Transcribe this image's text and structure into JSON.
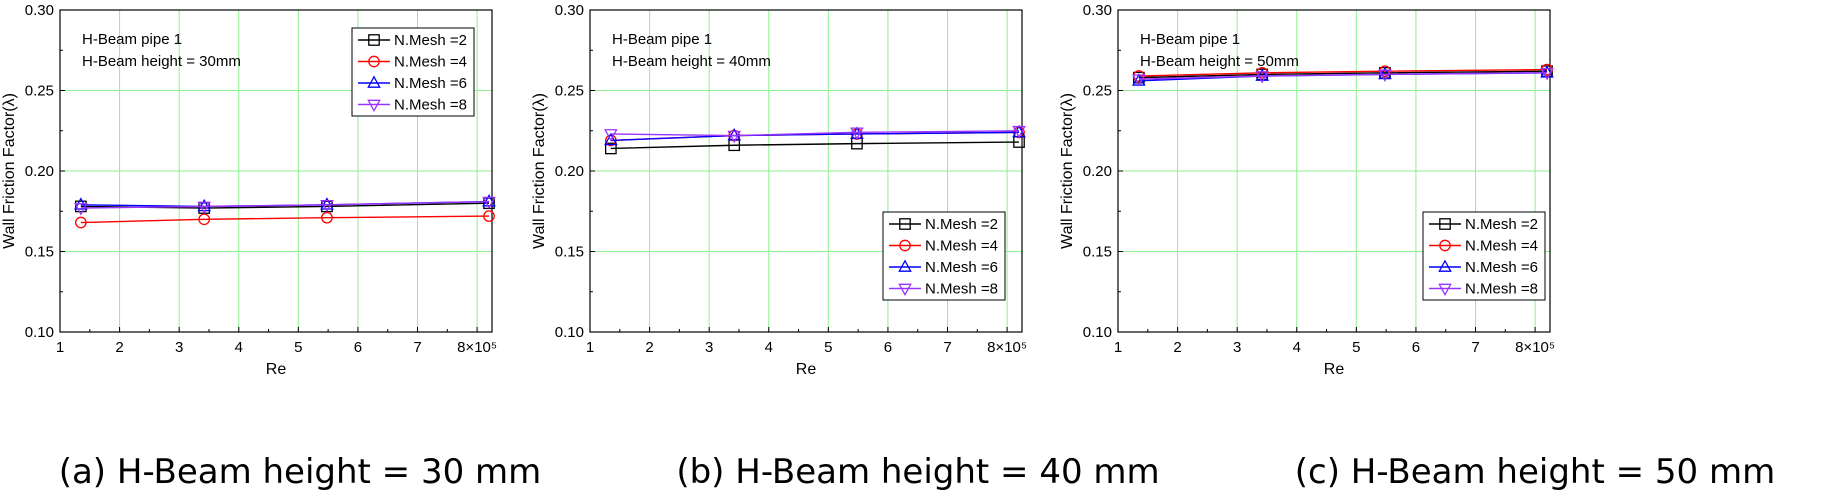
{
  "figure": {
    "captions": [
      "(a) H-Beam height = 30 mm",
      "(b) H-Beam height = 40 mm",
      "(c) H-Beam height = 50 mm"
    ]
  },
  "chart_data": [
    {
      "type": "line",
      "xlabel": "Re",
      "ylabel": "Wall Friction Factor(λ)",
      "x_tick_labels": [
        "1",
        "2",
        "3",
        "4",
        "5",
        "6",
        "7",
        "8×10⁵"
      ],
      "y_tick_labels": [
        "0.10",
        "0.15",
        "0.20",
        "0.25",
        "0.30"
      ],
      "xlim": [
        1,
        8.25
      ],
      "ylim": [
        0.1,
        0.3
      ],
      "grid": true,
      "annotations": [
        "H-Beam pipe 1",
        "H-Beam height = 30mm"
      ],
      "legend_position": "top-right",
      "x": [
        1.35,
        3.42,
        5.48,
        8.2
      ],
      "series": [
        {
          "name": "N.Mesh =2",
          "color": "#000000",
          "marker": "square",
          "values": [
            0.178,
            0.177,
            0.178,
            0.18
          ]
        },
        {
          "name": "N.Mesh =4",
          "color": "#ff0000",
          "marker": "circle",
          "values": [
            0.168,
            0.17,
            0.171,
            0.172
          ]
        },
        {
          "name": "N.Mesh =6",
          "color": "#0000ff",
          "marker": "triangle-up",
          "values": [
            0.179,
            0.178,
            0.179,
            0.181
          ]
        },
        {
          "name": "N.Mesh =8",
          "color": "#9933ff",
          "marker": "triangle-down",
          "values": [
            0.177,
            0.178,
            0.179,
            0.181
          ]
        }
      ]
    },
    {
      "type": "line",
      "xlabel": "Re",
      "ylabel": "Wall Friction Factor(λ)",
      "x_tick_labels": [
        "1",
        "2",
        "3",
        "4",
        "5",
        "6",
        "7",
        "8×10⁵"
      ],
      "y_tick_labels": [
        "0.10",
        "0.15",
        "0.20",
        "0.25",
        "0.30"
      ],
      "xlim": [
        1,
        8.25
      ],
      "ylim": [
        0.1,
        0.3
      ],
      "grid": true,
      "annotations": [
        "H-Beam pipe 1",
        "H-Beam height = 40mm"
      ],
      "legend_position": "lower-right",
      "x": [
        1.35,
        3.42,
        5.48,
        8.2
      ],
      "series": [
        {
          "name": "N.Mesh =2",
          "color": "#000000",
          "marker": "square",
          "values": [
            0.214,
            0.216,
            0.217,
            0.218
          ]
        },
        {
          "name": "N.Mesh =4",
          "color": "#ff0000",
          "marker": "circle",
          "values": [
            0.219,
            0.222,
            0.223,
            0.224
          ]
        },
        {
          "name": "N.Mesh =6",
          "color": "#0000ff",
          "marker": "triangle-up",
          "values": [
            0.219,
            0.222,
            0.223,
            0.224
          ]
        },
        {
          "name": "N.Mesh =8",
          "color": "#9933ff",
          "marker": "triangle-down",
          "values": [
            0.223,
            0.222,
            0.224,
            0.225
          ]
        }
      ]
    },
    {
      "type": "line",
      "xlabel": "Re",
      "ylabel": "Wall Friction Factor(λ)",
      "x_tick_labels": [
        "1",
        "2",
        "3",
        "4",
        "5",
        "6",
        "7",
        "8×10⁵"
      ],
      "y_tick_labels": [
        "0.10",
        "0.15",
        "0.20",
        "0.25",
        "0.30"
      ],
      "xlim": [
        1,
        8.25
      ],
      "ylim": [
        0.1,
        0.3
      ],
      "grid": true,
      "annotations": [
        "H-Beam pipe 1",
        "H-Beam height = 50mm"
      ],
      "legend_position": "lower-right",
      "x": [
        1.35,
        3.42,
        5.48,
        8.2
      ],
      "series": [
        {
          "name": "N.Mesh =2",
          "color": "#000000",
          "marker": "square",
          "values": [
            0.258,
            0.26,
            0.261,
            0.262
          ]
        },
        {
          "name": "N.Mesh =4",
          "color": "#ff0000",
          "marker": "circle",
          "values": [
            0.259,
            0.261,
            0.262,
            0.263
          ]
        },
        {
          "name": "N.Mesh =6",
          "color": "#0000ff",
          "marker": "triangle-up",
          "values": [
            0.256,
            0.259,
            0.26,
            0.261
          ]
        },
        {
          "name": "N.Mesh =8",
          "color": "#9933ff",
          "marker": "triangle-down",
          "values": [
            0.257,
            0.259,
            0.26,
            0.261
          ]
        }
      ]
    }
  ]
}
